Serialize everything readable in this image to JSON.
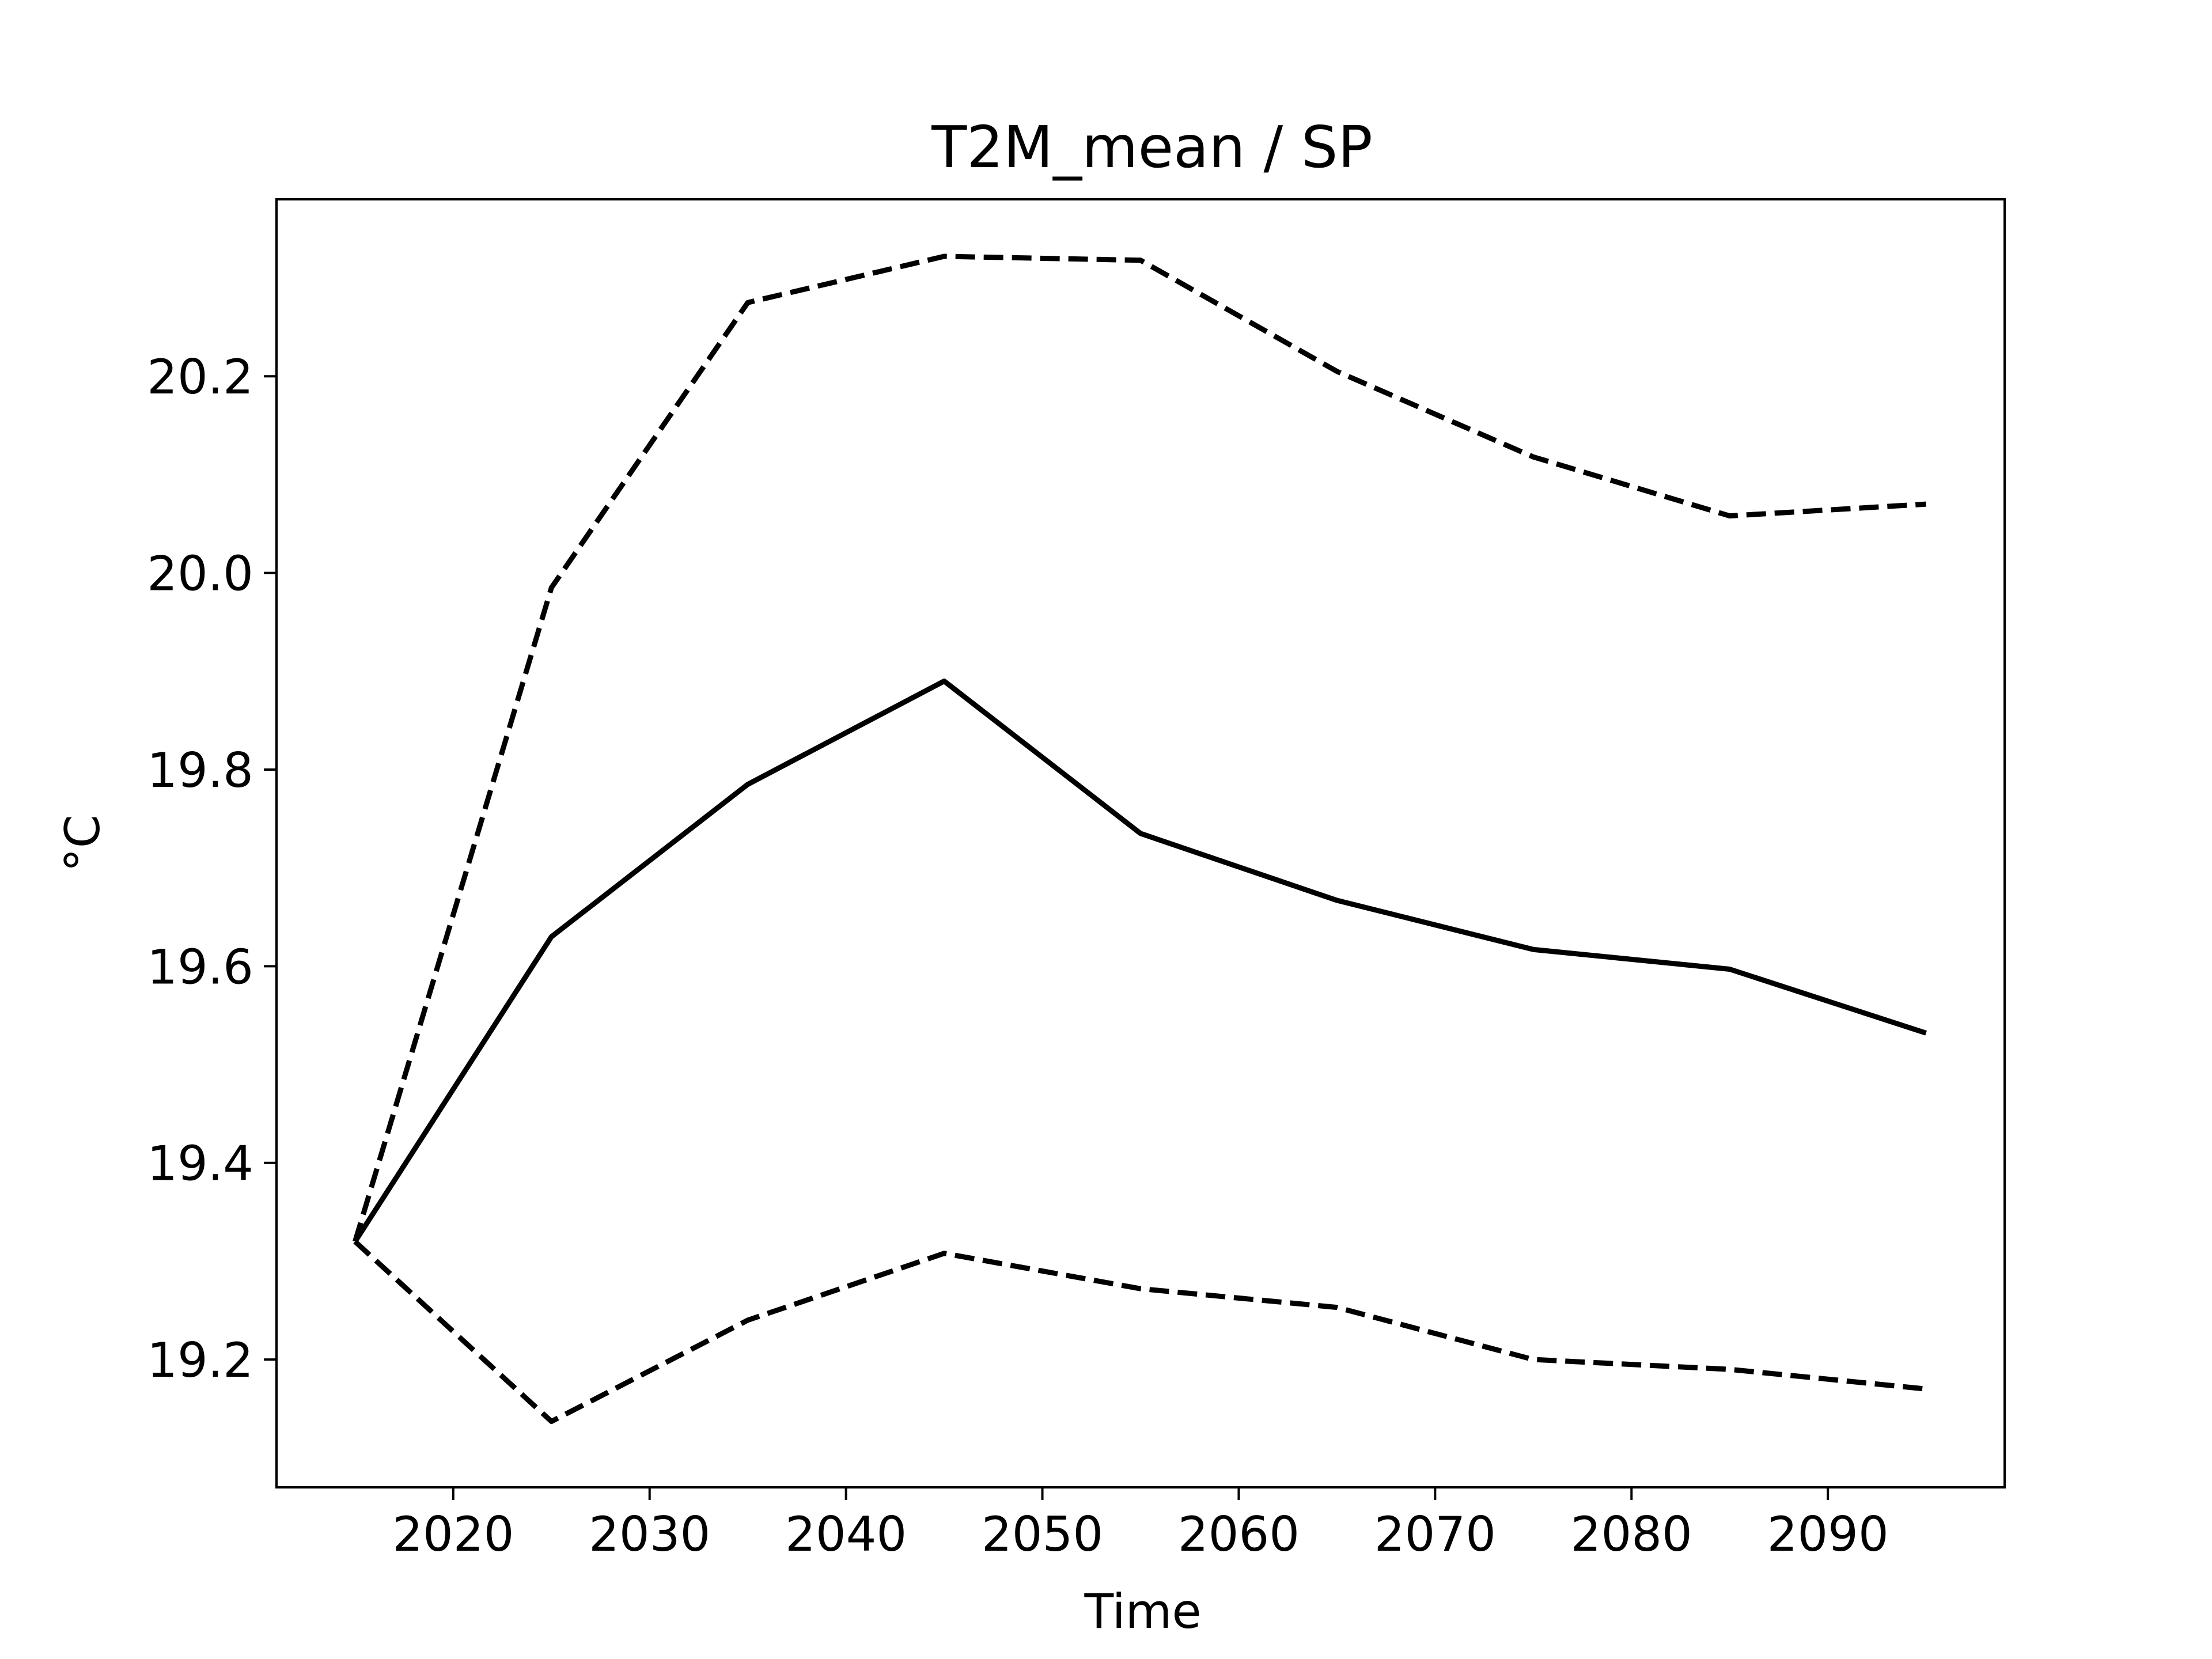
{
  "chart_data": {
    "type": "line",
    "title": "T2M_mean / SP",
    "xlabel": "Time",
    "ylabel": "°C",
    "xlim": [
      2011,
      2099
    ],
    "ylim": [
      19.07,
      20.38
    ],
    "xticks": [
      2020,
      2030,
      2040,
      2050,
      2060,
      2070,
      2080,
      2090
    ],
    "xtick_labels": [
      "2020",
      "2030",
      "2040",
      "2050",
      "2060",
      "2070",
      "2080",
      "2090"
    ],
    "yticks": [
      19.2,
      19.4,
      19.6,
      19.8,
      20.0,
      20.2
    ],
    "ytick_labels": [
      "19.2",
      "19.4",
      "19.6",
      "19.8",
      "20.0",
      "20.2"
    ],
    "grid": false,
    "legend": "none",
    "x": [
      2015,
      2025,
      2035,
      2045,
      2055,
      2065,
      2075,
      2085,
      2095
    ],
    "series": [
      {
        "style": "solid",
        "color": "#000000",
        "values": [
          19.32,
          19.63,
          19.785,
          19.89,
          19.735,
          19.667,
          19.617,
          19.597,
          19.532
        ]
      },
      {
        "style": "dashed",
        "color": "#000000",
        "values": [
          19.32,
          19.985,
          20.275,
          20.322,
          20.318,
          20.205,
          20.118,
          20.058,
          20.07
        ]
      },
      {
        "style": "dashed",
        "color": "#000000",
        "values": [
          19.32,
          19.137,
          19.24,
          19.308,
          19.272,
          19.253,
          19.2,
          19.19,
          19.17
        ]
      }
    ]
  }
}
